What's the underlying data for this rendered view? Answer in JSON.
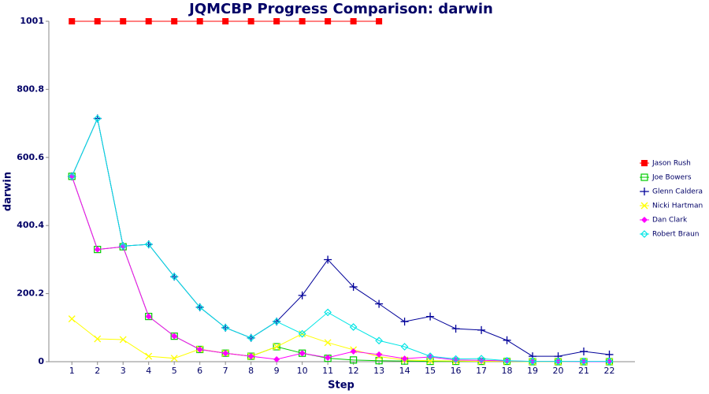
{
  "chart_data": {
    "type": "line",
    "title": "JQMCBP Progress Comparison: darwin",
    "x_label": "Step",
    "y_label": "darwin",
    "x": [
      1,
      2,
      3,
      4,
      5,
      6,
      7,
      8,
      9,
      10,
      11,
      12,
      13,
      14,
      15,
      16,
      17,
      18,
      19,
      20,
      21,
      22
    ],
    "xlim": [
      0.1,
      23
    ],
    "xticks": [
      1,
      2,
      3,
      4,
      5,
      6,
      7,
      8,
      9,
      10,
      11,
      12,
      13,
      14,
      15,
      16,
      17,
      18,
      19,
      20,
      21,
      22
    ],
    "ylim": [
      0,
      1001
    ],
    "yticks": [
      0,
      200.2,
      400.4,
      600.6,
      800.8,
      1001
    ],
    "series": [
      {
        "name": "Jason Rush",
        "color": "#ff0000",
        "marker": "square-filled",
        "values": [
          1001,
          1001,
          1001,
          1001,
          1001,
          1001,
          1001,
          1001,
          1001,
          1001,
          1001,
          1001,
          1001,
          null,
          null,
          null,
          null,
          null,
          null,
          null,
          null,
          null
        ]
      },
      {
        "name": "Joe Bowers",
        "color": "#00cc00",
        "marker": "square-open",
        "values": [
          545,
          330,
          338,
          133,
          75,
          36,
          25,
          16,
          44,
          25,
          10,
          5,
          3,
          2,
          1,
          1,
          1,
          1,
          0,
          0,
          0,
          0
        ]
      },
      {
        "name": "Glenn Caldera",
        "color": "#000099",
        "marker": "plus",
        "values": [
          545,
          715,
          340,
          345,
          250,
          160,
          100,
          70,
          118,
          195,
          300,
          220,
          170,
          118,
          133,
          97,
          93,
          63,
          16,
          16,
          30,
          21
        ]
      },
      {
        "name": "Nicki Hartman",
        "color": "#ffff00",
        "marker": "cross",
        "values": [
          126,
          67,
          65,
          16,
          10,
          37,
          25,
          16,
          44,
          82,
          56,
          35,
          15,
          5,
          3,
          2,
          1,
          1,
          0,
          0,
          0,
          0
        ]
      },
      {
        "name": "Dan Clark",
        "color": "#ff00ff",
        "marker": "diamond-filled",
        "values": [
          545,
          330,
          338,
          133,
          75,
          36,
          25,
          16,
          7,
          25,
          12,
          30,
          21,
          9,
          14,
          5,
          4,
          2,
          1,
          1,
          0,
          0
        ]
      },
      {
        "name": "Robert Braun",
        "color": "#00e5e5",
        "marker": "diamond-open",
        "values": [
          545,
          715,
          340,
          345,
          250,
          160,
          100,
          70,
          118,
          82,
          145,
          102,
          62,
          44,
          16,
          8,
          9,
          3,
          1,
          1,
          1,
          1
        ]
      }
    ]
  }
}
